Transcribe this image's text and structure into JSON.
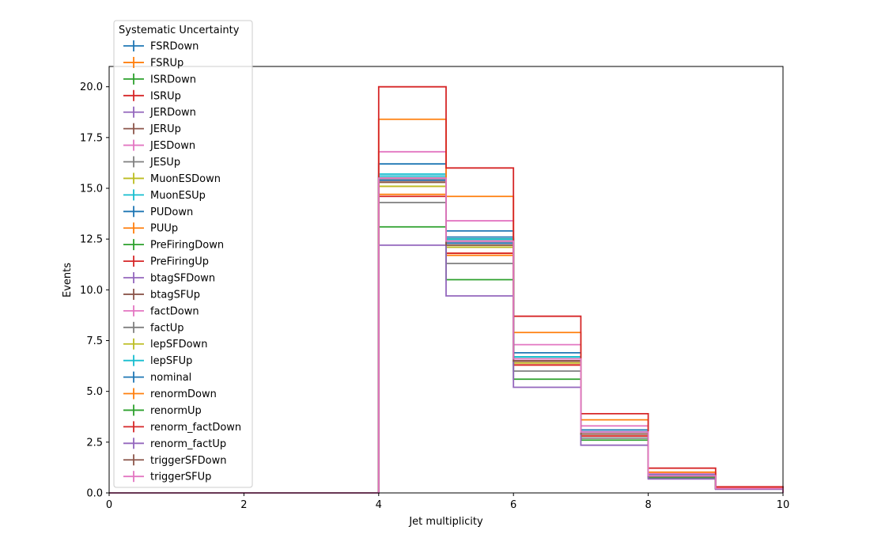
{
  "chart_data": {
    "type": "line",
    "title": "",
    "xlabel": "Jet multiplicity",
    "ylabel": "Events",
    "xlim": [
      0,
      10
    ],
    "ylim": [
      0,
      21
    ],
    "x_ticks": [
      "0",
      "2",
      "4",
      "6",
      "8",
      "10"
    ],
    "y_ticks": [
      "0.0",
      "2.5",
      "5.0",
      "7.5",
      "10.0",
      "12.5",
      "15.0",
      "17.5",
      "20.0"
    ],
    "grid": false,
    "legend_title": "Systematic Uncertainty",
    "legend_position": "top-left",
    "bin_edges": [
      0,
      1,
      2,
      3,
      4,
      5,
      6,
      7,
      8,
      9,
      10
    ],
    "series": [
      {
        "name": "FSRDown",
        "color": "#1f77b4",
        "values": [
          0,
          0,
          0,
          0,
          16.2,
          12.6,
          6.6,
          3.0,
          0.85,
          0.22
        ]
      },
      {
        "name": "FSRUp",
        "color": "#ff7f0e",
        "values": [
          0,
          0,
          0,
          0,
          15.1,
          11.7,
          6.4,
          2.9,
          0.82,
          0.21
        ]
      },
      {
        "name": "ISRDown",
        "color": "#2ca02c",
        "values": [
          0,
          0,
          0,
          0,
          15.5,
          12.4,
          6.6,
          3.0,
          0.85,
          0.22
        ]
      },
      {
        "name": "ISRUp",
        "color": "#d62728",
        "values": [
          0,
          0,
          0,
          0,
          15.4,
          11.8,
          6.5,
          2.9,
          0.83,
          0.21
        ]
      },
      {
        "name": "JERDown",
        "color": "#9467bd",
        "values": [
          0,
          0,
          0,
          0,
          15.5,
          12.4,
          6.6,
          3.0,
          0.85,
          0.22
        ]
      },
      {
        "name": "JERUp",
        "color": "#8c564b",
        "values": [
          0,
          0,
          0,
          0,
          15.3,
          12.3,
          6.5,
          3.0,
          0.84,
          0.22
        ]
      },
      {
        "name": "JESDown",
        "color": "#e377c2",
        "values": [
          0,
          0,
          0,
          0,
          15.4,
          12.1,
          6.5,
          2.9,
          0.84,
          0.22
        ]
      },
      {
        "name": "JESUp",
        "color": "#7f7f7f",
        "values": [
          0,
          0,
          0,
          0,
          15.5,
          12.5,
          6.6,
          3.0,
          0.85,
          0.22
        ]
      },
      {
        "name": "MuonESDown",
        "color": "#bcbd22",
        "values": [
          0,
          0,
          0,
          0,
          15.3,
          12.2,
          6.5,
          2.9,
          0.84,
          0.22
        ]
      },
      {
        "name": "MuonESUp",
        "color": "#17becf",
        "values": [
          0,
          0,
          0,
          0,
          15.7,
          12.5,
          6.7,
          3.0,
          0.86,
          0.22
        ]
      },
      {
        "name": "PUDown",
        "color": "#1f77b4",
        "values": [
          0,
          0,
          0,
          0,
          15.6,
          12.9,
          6.9,
          3.1,
          0.88,
          0.23
        ]
      },
      {
        "name": "PUUp",
        "color": "#ff7f0e",
        "values": [
          0,
          0,
          0,
          0,
          14.7,
          11.8,
          6.3,
          2.8,
          0.81,
          0.21
        ]
      },
      {
        "name": "PreFiringDown",
        "color": "#2ca02c",
        "values": [
          0,
          0,
          0,
          0,
          15.5,
          12.5,
          6.6,
          3.0,
          0.85,
          0.22
        ]
      },
      {
        "name": "PreFiringUp",
        "color": "#d62728",
        "values": [
          0,
          0,
          0,
          0,
          14.6,
          11.8,
          6.3,
          2.8,
          0.81,
          0.21
        ]
      },
      {
        "name": "btagSFDown",
        "color": "#9467bd",
        "values": [
          0,
          0,
          0,
          0,
          15.4,
          12.4,
          6.5,
          3.0,
          0.84,
          0.22
        ]
      },
      {
        "name": "btagSFUp",
        "color": "#8c564b",
        "values": [
          0,
          0,
          0,
          0,
          15.4,
          12.3,
          6.5,
          2.9,
          0.84,
          0.22
        ]
      },
      {
        "name": "factDown",
        "color": "#e377c2",
        "values": [
          0,
          0,
          0,
          0,
          16.8,
          13.4,
          7.3,
          3.3,
          0.95,
          0.25
        ]
      },
      {
        "name": "factUp",
        "color": "#7f7f7f",
        "values": [
          0,
          0,
          0,
          0,
          14.3,
          11.3,
          6.0,
          2.7,
          0.77,
          0.2
        ]
      },
      {
        "name": "lepSFDown",
        "color": "#bcbd22",
        "values": [
          0,
          0,
          0,
          0,
          15.1,
          12.1,
          6.4,
          2.9,
          0.83,
          0.21
        ]
      },
      {
        "name": "lepSFUp",
        "color": "#17becf",
        "values": [
          0,
          0,
          0,
          0,
          15.6,
          12.5,
          6.7,
          3.0,
          0.86,
          0.22
        ]
      },
      {
        "name": "nominal",
        "color": "#1f77b4",
        "values": [
          0,
          0,
          0,
          0,
          15.4,
          12.3,
          6.6,
          3.0,
          0.85,
          0.22
        ]
      },
      {
        "name": "renormDown",
        "color": "#ff7f0e",
        "values": [
          0,
          0,
          0,
          0,
          18.4,
          14.6,
          7.9,
          3.6,
          1.02,
          0.26
        ]
      },
      {
        "name": "renormUp",
        "color": "#2ca02c",
        "values": [
          0,
          0,
          0,
          0,
          13.1,
          10.5,
          5.6,
          2.6,
          0.73,
          0.19
        ]
      },
      {
        "name": "renorm_factDown",
        "color": "#d62728",
        "values": [
          0,
          0,
          0,
          0,
          20.0,
          16.0,
          8.7,
          3.9,
          1.22,
          0.3
        ]
      },
      {
        "name": "renorm_factUp",
        "color": "#9467bd",
        "values": [
          0,
          0,
          0,
          0,
          12.2,
          9.7,
          5.2,
          2.35,
          0.69,
          0.18
        ]
      },
      {
        "name": "triggerSFDown",
        "color": "#8c564b",
        "values": [
          0,
          0,
          0,
          0,
          15.3,
          12.2,
          6.5,
          2.9,
          0.84,
          0.22
        ]
      },
      {
        "name": "triggerSFUp",
        "color": "#e377c2",
        "values": [
          0,
          0,
          0,
          0,
          15.5,
          12.4,
          6.6,
          3.0,
          0.85,
          0.22
        ]
      }
    ]
  }
}
